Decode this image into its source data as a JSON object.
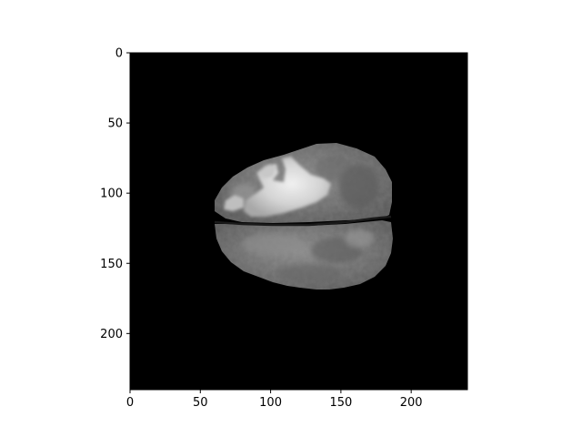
{
  "figure": {
    "background": "#ffffff",
    "image_background": "#000000",
    "colormap": "grayscale",
    "content": "axial brain MRI slice with bright lesion"
  },
  "axes": {
    "x": {
      "min": 0,
      "max": 240,
      "ticks": [
        0,
        50,
        100,
        150,
        200
      ],
      "tick_labels": [
        "0",
        "50",
        "100",
        "150",
        "200"
      ]
    },
    "y": {
      "min": 0,
      "max": 240,
      "inverted": true,
      "ticks": [
        0,
        50,
        100,
        150,
        200
      ],
      "tick_labels": [
        "0",
        "50",
        "100",
        "150",
        "200"
      ]
    },
    "grid": false
  }
}
